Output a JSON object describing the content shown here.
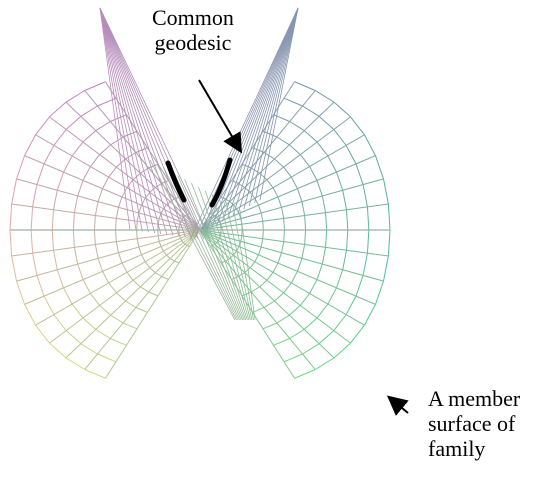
{
  "annotations": {
    "geodesic_label": [
      "Common",
      "geodesic"
    ],
    "member_label": [
      "A member",
      "surface of",
      "family"
    ]
  },
  "colors": {
    "top_left": "#e060e0",
    "bottom_left": "#f0f070",
    "top_right": "#6090b0",
    "bottom_right": "#40e080",
    "geodesic": "#000000"
  }
}
